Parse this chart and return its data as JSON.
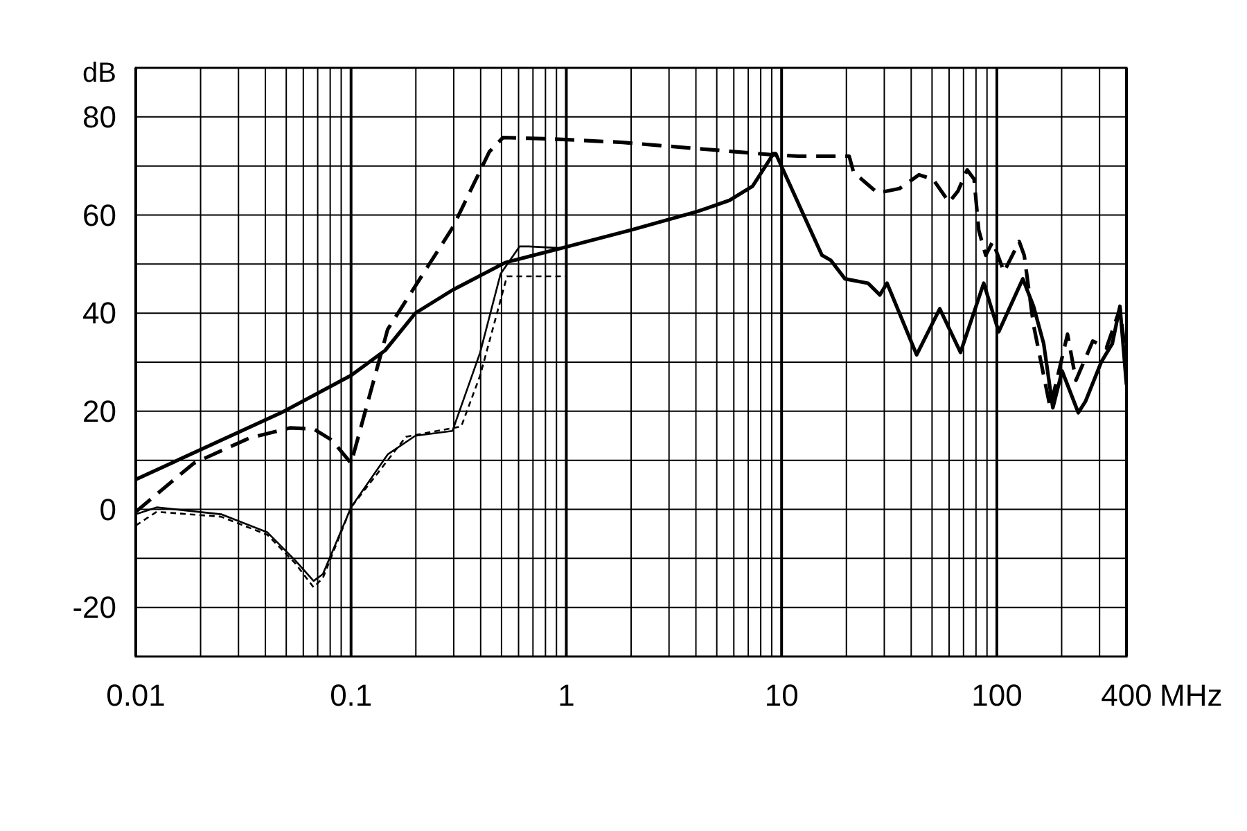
{
  "chart_data": {
    "type": "line",
    "xlabel": "MHz",
    "ylabel": "dB",
    "log": "x",
    "grid": true,
    "marker": "none",
    "xlim": [
      0.01,
      400
    ],
    "ylim": [
      -30,
      90
    ],
    "xticks": [
      0.01,
      {
        "value": 0.02,
        "label": null
      },
      {
        "value": 0.03,
        "label": null
      },
      {
        "value": 0.04,
        "label": null
      },
      {
        "value": 0.05,
        "label": null
      },
      {
        "value": 0.06,
        "label": null
      },
      {
        "value": 0.07,
        "label": null
      },
      {
        "value": 0.08,
        "label": null
      },
      {
        "value": 0.09,
        "label": null
      },
      0.1,
      {
        "value": 0.2,
        "label": null
      },
      {
        "value": 0.3,
        "label": null
      },
      {
        "value": 0.4,
        "label": null
      },
      {
        "value": 0.5,
        "label": null
      },
      {
        "value": 0.6,
        "label": null
      },
      {
        "value": 0.7,
        "label": null
      },
      {
        "value": 0.8,
        "label": null
      },
      {
        "value": 0.9,
        "label": null
      },
      1,
      {
        "value": 2,
        "label": null
      },
      {
        "value": 3,
        "label": null
      },
      {
        "value": 4,
        "label": null
      },
      {
        "value": 5,
        "label": null
      },
      {
        "value": 6,
        "label": null
      },
      {
        "value": 7,
        "label": null
      },
      {
        "value": 8,
        "label": null
      },
      {
        "value": 9,
        "label": null
      },
      10,
      {
        "value": 20,
        "label": null
      },
      {
        "value": 30,
        "label": null
      },
      {
        "value": 40,
        "label": null
      },
      {
        "value": 50,
        "label": null
      },
      {
        "value": 60,
        "label": null
      },
      {
        "value": 70,
        "label": null
      },
      {
        "value": 80,
        "label": null
      },
      {
        "value": 90,
        "label": null
      },
      100,
      {
        "value": 200,
        "label": null
      },
      {
        "value": 300,
        "label": null
      },
      400
    ],
    "yticks": [
      {
        "value": -30,
        "label": null
      },
      -20,
      {
        "value": -10,
        "label": null
      },
      0,
      {
        "value": 10,
        "label": null
      },
      20,
      {
        "value": 30,
        "label": null
      },
      40,
      {
        "value": 50,
        "label": null
      },
      60,
      {
        "value": 70,
        "label": null
      },
      80,
      {
        "value": 90,
        "label": null
      }
    ],
    "series": [
      {
        "color": "#000000",
        "line_style": "solid",
        "x": [
          0.01,
          0.0474,
          0.1,
          0.144,
          0.199,
          0.296,
          0.52,
          1.0,
          1.98,
          4.05,
          5.73,
          7.34,
          9.17,
          9.4,
          12.6,
          15.4,
          16.9,
          19.7,
          25.2,
          28.6,
          30.9,
          42.4,
          54.3,
          67.8,
          86.9,
          102,
          132,
          148,
          165,
          182,
          201,
          239,
          258,
          306,
          344,
          373,
          400
        ],
        "values": [
          6.1,
          19.7,
          27.3,
          32.4,
          40,
          44.7,
          50.3,
          53.5,
          56.9,
          60.7,
          63,
          65.9,
          72.5,
          72.5,
          60.2,
          51.8,
          50.8,
          47,
          46.1,
          43.7,
          46.1,
          31.5,
          40.9,
          32,
          46.1,
          36.2,
          47,
          41.4,
          33.8,
          20.7,
          28.2,
          19.7,
          22,
          30.1,
          33.8,
          41.4,
          25.4
        ]
      },
      {
        "color": "#000000",
        "line_style": "dashed",
        "x": [
          0.01,
          0.0186,
          0.0336,
          0.052,
          0.067,
          0.0815,
          0.1,
          0.148,
          0.296,
          0.439,
          0.508,
          0.87,
          1.83,
          3.9,
          7.0,
          8.95,
          12.0,
          16.9,
          20.6,
          21.6,
          27.9,
          35.3,
          43.5,
          50.5,
          60,
          66,
          72.8,
          78.4,
          82.4,
          88.8,
          95.7,
          108,
          127,
          134,
          148,
          165,
          177,
          213,
          233,
          279,
          323,
          373,
          400
        ],
        "values": [
          -0.5,
          9.4,
          14.5,
          16.6,
          16.4,
          14.1,
          9.4,
          36.7,
          57.4,
          72.9,
          75.8,
          75.5,
          74.8,
          73.6,
          72.7,
          72.3,
          72,
          72,
          72,
          68.7,
          64.5,
          65.4,
          68.2,
          67.3,
          62.6,
          64.9,
          69.2,
          67.3,
          56.9,
          51.8,
          54.6,
          48.4,
          54.6,
          51.8,
          37.6,
          27.3,
          20.7,
          35.7,
          26.3,
          34.3,
          32.9,
          40.9,
          30.1
        ]
      },
      {
        "color": "#000000",
        "line_style": "solid",
        "x": [
          0.01,
          0.0125,
          0.0249,
          0.0409,
          0.055,
          0.067,
          0.074,
          0.1,
          0.148,
          0.199,
          0.296,
          0.398,
          0.495,
          0.607,
          0.67,
          0.99
        ],
        "values": [
          -1,
          0.4,
          -1,
          -4.7,
          -10.4,
          -14.6,
          -13.2,
          0.4,
          11.2,
          15,
          16,
          32,
          48,
          53.6,
          53.6,
          53.2
        ]
      },
      {
        "color": "#000000",
        "line_style": "dotted",
        "x": [
          0.01,
          0.0125,
          0.0249,
          0.0409,
          0.055,
          0.067,
          0.074,
          0.1,
          0.18,
          0.325,
          0.398,
          0.53,
          0.99
        ],
        "values": [
          -3.3,
          -0.5,
          -1.5,
          -5.2,
          -11,
          -15.9,
          -14,
          0.4,
          14.8,
          16.9,
          27.3,
          47.5,
          47.5
        ]
      }
    ]
  }
}
